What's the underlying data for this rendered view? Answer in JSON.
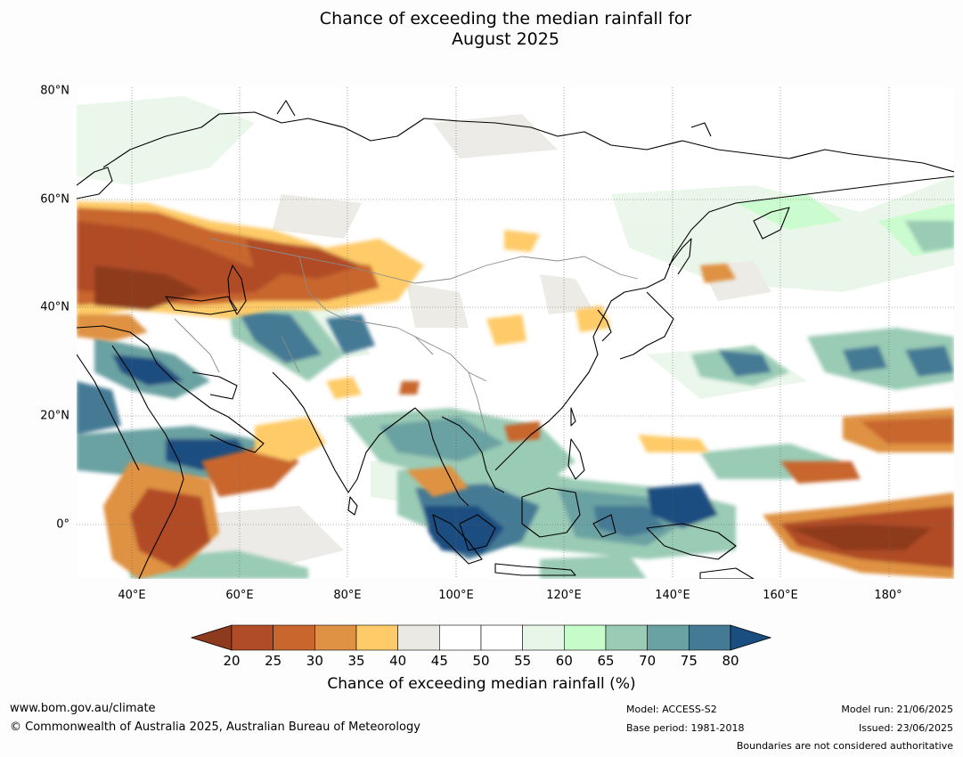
{
  "title": {
    "line1": "Chance of exceeding the median rainfall for",
    "line2": "August 2025"
  },
  "map": {
    "lat_labels": [
      "80°N",
      "60°N",
      "40°N",
      "20°N",
      "0°"
    ],
    "lon_labels": [
      "40°E",
      "60°E",
      "80°E",
      "100°E",
      "120°E",
      "140°E",
      "160°E",
      "180°"
    ],
    "extent": {
      "lon_min": 30,
      "lon_max": 192,
      "lat_min": -10,
      "lat_max": 80
    },
    "regions_notes": {
      "dry_signal": "Central Asia / Middle East (30-75°E, 40-60°N); NE Africa/Arabian Sea; equatorial central Pacific (160-190°E, 0-5°N); eastern Pacific near 20°N",
      "wet_signal": "Maritime Continent / eastern Indian Ocean (90-150°E, 10°S-15°N); Arabian Peninsula east; NW Pacific (135-190°E, 25-35°N)"
    }
  },
  "colorbar": {
    "ticks": [
      "20",
      "25",
      "30",
      "35",
      "40",
      "45",
      "50",
      "55",
      "60",
      "65",
      "70",
      "75",
      "80"
    ],
    "colors": [
      "#8e3a1e",
      "#b04c27",
      "#c8662e",
      "#df9243",
      "#fecb68",
      "#ebe9e4",
      "#ffffff",
      "#ffffff",
      "#e8f6e8",
      "#c6fcca",
      "#9acbb5",
      "#6aa1a2",
      "#457a95",
      "#1b4e80"
    ],
    "caption": "Chance of exceeding median rainfall (%)"
  },
  "footer": {
    "website": "www.bom.gov.au/climate",
    "copyright": "© Commonwealth of Australia 2025, Australian Bureau of Meteorology",
    "model": "Model: ACCESS-S2",
    "base_period": "Base period: 1981-2018",
    "model_run": "Model run: 21/06/2025",
    "issued": "Issued: 23/06/2025",
    "disclaimer": "Boundaries are not considered authoritative"
  }
}
